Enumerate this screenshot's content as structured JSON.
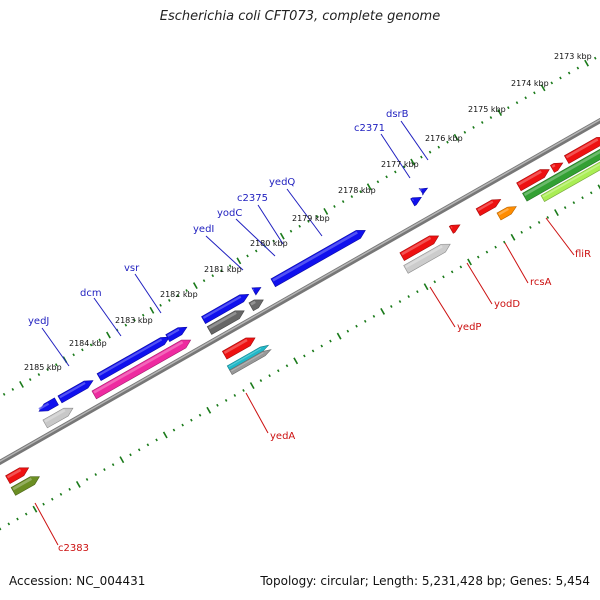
{
  "title": "Escherichia coli CFT073, complete genome",
  "footer": {
    "accession": "Accession: NC_004431",
    "summary": "Topology: circular; Length: 5,231,428 bp; Genes: 5,454"
  },
  "colors": {
    "backbone": "#8a8a8a",
    "tick": "#1a7a1a",
    "label_top": "#1f1fbf",
    "label_bottom": "#cc1111"
  },
  "kbp_labels": [
    "2173 kbp",
    "2174 kbp",
    "2175 kbp",
    "2176 kbp",
    "2177 kbp",
    "2178 kbp",
    "2179 kbp",
    "2180 kbp",
    "2181 kbp",
    "2182 kbp",
    "2183 kbp",
    "2184 kbp",
    "2185 kbp"
  ],
  "gene_labels_top": [
    "dsrB",
    "c2371",
    "yedQ",
    "c2375",
    "yodC",
    "yedI",
    "vsr",
    "dcm",
    "yedJ"
  ],
  "gene_labels_bottom": [
    "fliR",
    "rcsA",
    "yodD",
    "yedP",
    "yedA",
    "c2383"
  ]
}
